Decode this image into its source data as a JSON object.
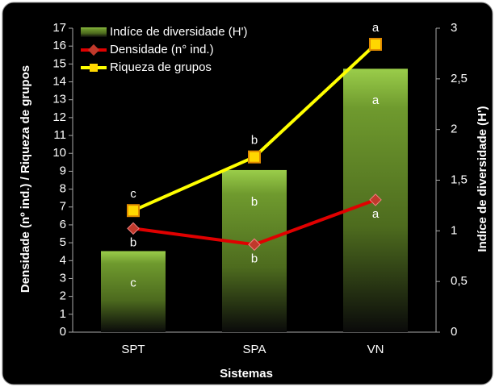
{
  "chart_data": {
    "type": "combo",
    "categories": [
      "SPT",
      "SPA",
      "VN"
    ],
    "xlabel": "Sistemas",
    "ylabel": "Densidade (nº ind.) / Riqueza de grupos",
    "y2label": "Indíce de diversidade (H')",
    "ylim": [
      0,
      17
    ],
    "yticks": [
      0,
      1,
      2,
      3,
      4,
      5,
      6,
      7,
      8,
      9,
      10,
      11,
      12,
      13,
      14,
      15,
      16,
      17
    ],
    "y2lim": [
      0,
      3
    ],
    "y2ticks": [
      0,
      {
        "value": 0.5,
        "label": "0,5"
      },
      1,
      {
        "value": 1.5,
        "label": "1,5"
      },
      2,
      {
        "value": 2.5,
        "label": "2,5"
      },
      3
    ],
    "legend": "top-left",
    "series": [
      {
        "name": "Indíce de diversidade (H')",
        "type": "bar",
        "axis": "y2",
        "color": "#8fb83a",
        "values": [
          0.8,
          1.6,
          2.6
        ],
        "letters": [
          "c",
          "b",
          "a"
        ]
      },
      {
        "name": "Densidade (n° ind.)",
        "type": "line",
        "color": "#e00000",
        "values": [
          5.8,
          4.9,
          7.4
        ],
        "letters": [
          "b",
          "b",
          "a"
        ]
      },
      {
        "name": "Riqueza de grupos",
        "type": "line",
        "color": "#ffff00",
        "values": [
          6.8,
          9.8,
          16.1
        ],
        "letters": [
          "c",
          "b",
          "a"
        ]
      }
    ]
  }
}
